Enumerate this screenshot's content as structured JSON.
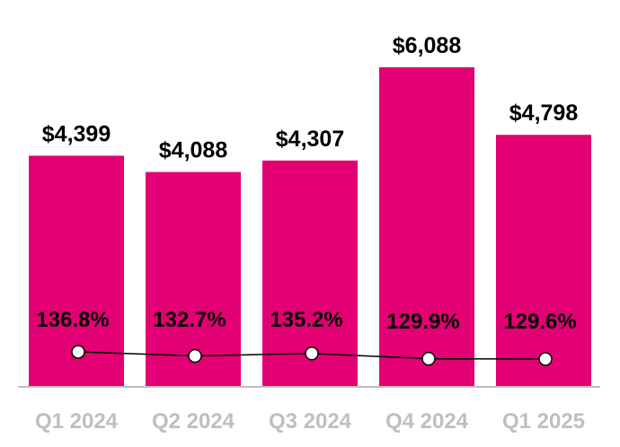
{
  "chart_data": {
    "type": "bar",
    "categories": [
      "Q1 2024",
      "Q2 2024",
      "Q3 2024",
      "Q4 2024",
      "Q1 2025"
    ],
    "series": [
      {
        "type": "bar",
        "values": [
          4399,
          4088,
          4307,
          6088,
          4798
        ],
        "labels": [
          "$4,399",
          "$4,088",
          "$4,307",
          "$6,088",
          "$4,798"
        ],
        "color": "#E20074"
      },
      {
        "type": "line",
        "values": [
          136.8,
          132.7,
          135.2,
          129.9,
          129.6
        ],
        "labels": [
          "136.8%",
          "132.7%",
          "135.2%",
          "129.9%",
          "129.6%"
        ],
        "color": "#000000"
      }
    ],
    "title": "",
    "xlabel": "",
    "ylabel": "",
    "grid": false,
    "legend": "none"
  }
}
